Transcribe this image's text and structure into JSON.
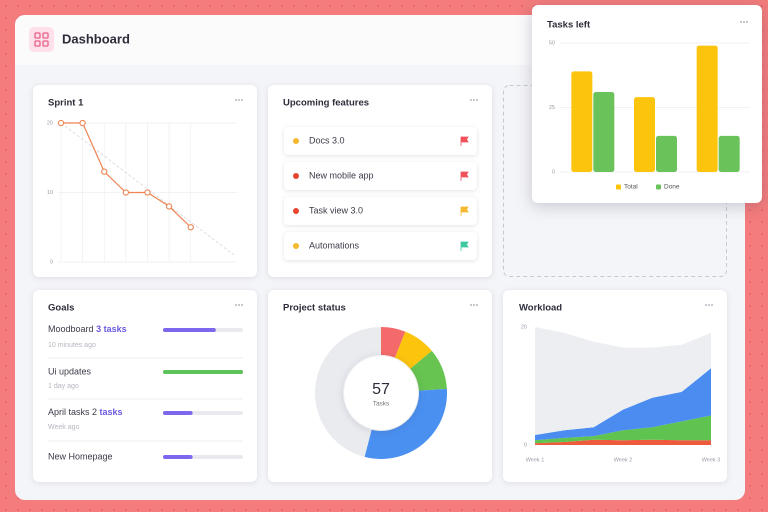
{
  "header": {
    "title": "Dashboard"
  },
  "upcoming_features": {
    "title": "Upcoming features",
    "items": [
      {
        "label": "Docs 3.0",
        "dot_color": "#f5b82e",
        "flag_color": "#f0515a"
      },
      {
        "label": "New mobile app",
        "dot_color": "#e8452f",
        "flag_color": "#f0515a"
      },
      {
        "label": "Task view 3.0",
        "dot_color": "#e8452f",
        "flag_color": "#f5b82e"
      },
      {
        "label": "Automations",
        "dot_color": "#f5b82e",
        "flag_color": "#3ec9a2"
      }
    ]
  },
  "goals": {
    "title": "Goals",
    "items": [
      {
        "title": "Moodboard",
        "highlight": "3 tasks",
        "subtitle": "10 minutes ago",
        "progress": 66,
        "bar_color": "#7b68ee"
      },
      {
        "title": "Ui updates",
        "subtitle": "1 day ago",
        "progress": 100,
        "bar_color": "#5dc25a"
      },
      {
        "title": "April tasks 2",
        "highlight": "tasks",
        "subtitle": "Week ago",
        "progress": 37,
        "bar_color": "#7b68ee"
      },
      {
        "title": "New Homepage",
        "progress": 37,
        "bar_color": "#7b68ee"
      }
    ]
  },
  "chart_data": [
    {
      "type": "line",
      "title": "Sprint 1",
      "xlim": [
        0,
        8
      ],
      "ylim": [
        0,
        20
      ],
      "yticks": [
        0,
        10,
        20
      ],
      "grid": true,
      "series": [
        {
          "color": "#ee8452",
          "x": [
            0,
            1,
            2,
            3,
            4,
            5,
            6
          ],
          "values": [
            20,
            20,
            13,
            10,
            10,
            8,
            5
          ],
          "markers": true
        },
        {
          "color": "#d6d6dc",
          "x": [
            0,
            8
          ],
          "values": [
            20,
            1
          ],
          "dashed": true
        }
      ]
    },
    {
      "type": "bar",
      "title": "Tasks left",
      "categories": [
        null,
        null,
        null
      ],
      "ylim": [
        0,
        50
      ],
      "yticks": [
        0,
        25,
        50
      ],
      "grid": true,
      "legend": "bottom",
      "series": [
        {
          "name": "Total",
          "color": "#fcc40c",
          "values": [
            39,
            29,
            49
          ]
        },
        {
          "name": "Done",
          "color": "#69c35a",
          "values": [
            31,
            14,
            14
          ]
        }
      ]
    },
    {
      "type": "donut",
      "title": "Project status",
      "center_value": 57,
      "center_label": "Tasks",
      "values": [
        6,
        8,
        10,
        30,
        46
      ],
      "colors": [
        "#f46a6a",
        "#fcc40c",
        "#67c450",
        "#4a90f0",
        "#e9ebef"
      ]
    },
    {
      "type": "area",
      "stacked": true,
      "title": "Workload",
      "categories": [
        "Week 1",
        null,
        null,
        "Week 2",
        null,
        null,
        "Week 3"
      ],
      "ylim": [
        0,
        20
      ],
      "yticks": [
        0,
        20
      ],
      "series": [
        {
          "color": "#ee5a3c",
          "values": [
            0.3,
            0.5,
            0.9,
            0.8,
            0.9,
            0.8,
            0.8
          ]
        },
        {
          "color": "#5fc34f",
          "values": [
            0.5,
            0.7,
            0.6,
            1.7,
            2.1,
            3.2,
            4.2
          ]
        },
        {
          "color": "#4a8cf0",
          "values": [
            0.9,
            1.3,
            1.5,
            3.5,
            5,
            5,
            8
          ]
        },
        {
          "color": "#eceef2",
          "values": [
            18.3,
            16.5,
            14.5,
            10.5,
            8.5,
            8,
            6
          ]
        }
      ]
    }
  ]
}
